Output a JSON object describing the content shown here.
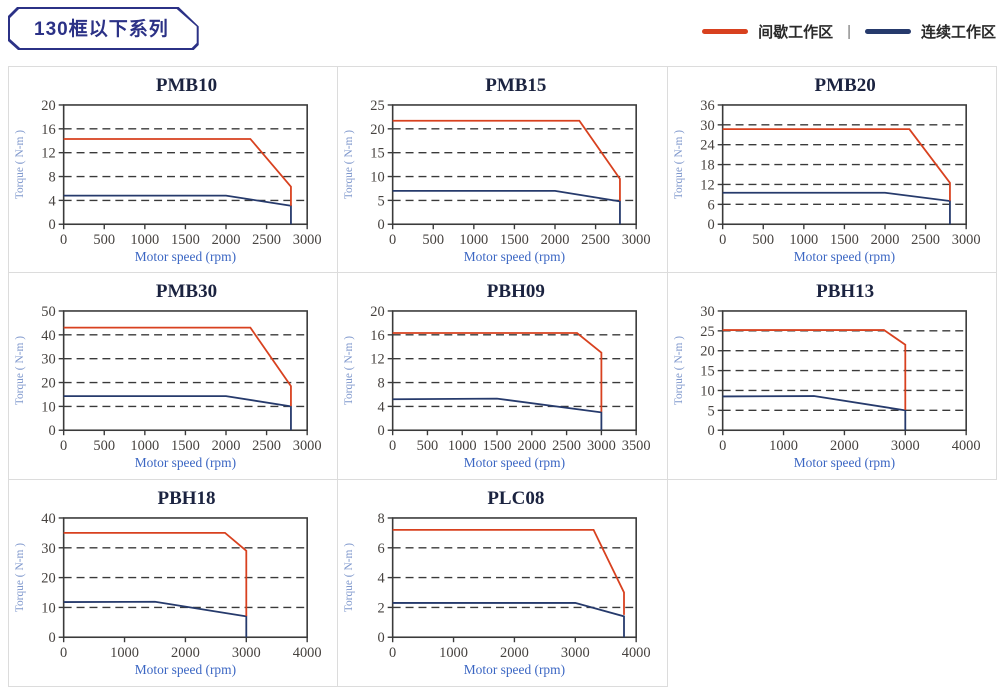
{
  "page": {
    "badge_title": "130框以下系列"
  },
  "legend": {
    "separator": "|",
    "items": [
      {
        "id": "intermittent",
        "label": "间歇工作区",
        "color": "#d8411f"
      },
      {
        "id": "continuous",
        "label": "连续工作区",
        "color": "#263a6c"
      }
    ]
  },
  "colors": {
    "intermittent_line": "#d8411f",
    "continuous_line": "#263a6c",
    "plot_border": "#3a3a3a",
    "gridline": "#3a3a3a",
    "tick_label": "#46423f",
    "xlabel_text": "#3b66c3",
    "ylabel_text": "#7e97cc",
    "chart_title": "#1b2340",
    "cell_border": "#dcdcdc",
    "badge": "#2b3186"
  },
  "axis_labels": {
    "x": "Motor speed (rpm)",
    "y": "Torque ( N-m )"
  },
  "chart_data": [
    {
      "type": "line",
      "title": "PMB10",
      "xlabel": "Motor speed (rpm)",
      "ylabel": "Torque ( N-m )",
      "xlim": [
        0,
        3000
      ],
      "ylim": [
        0,
        20
      ],
      "xticks": [
        0,
        500,
        1000,
        1500,
        2000,
        2500,
        3000
      ],
      "yticks": [
        0,
        4,
        8,
        12,
        16,
        20
      ],
      "grid": "dashed-horizontal",
      "series": [
        {
          "name": "间歇工作区",
          "role": "intermittent",
          "points": [
            [
              0,
              14.3
            ],
            [
              2300,
              14.3
            ],
            [
              2800,
              6.3
            ],
            [
              2800,
              3.1
            ]
          ]
        },
        {
          "name": "连续工作区",
          "role": "continuous",
          "points": [
            [
              0,
              4.8
            ],
            [
              2000,
              4.8
            ],
            [
              2800,
              3.1
            ],
            [
              2800,
              0
            ]
          ]
        }
      ]
    },
    {
      "type": "line",
      "title": "PMB15",
      "xlabel": "Motor speed (rpm)",
      "ylabel": "Torque ( N-m )",
      "xlim": [
        0,
        3000
      ],
      "ylim": [
        0,
        25
      ],
      "xticks": [
        0,
        500,
        1000,
        1500,
        2000,
        2500,
        3000
      ],
      "yticks": [
        0,
        5,
        10,
        15,
        20,
        25
      ],
      "grid": "dashed-horizontal",
      "series": [
        {
          "name": "间歇工作区",
          "role": "intermittent",
          "points": [
            [
              0,
              21.7
            ],
            [
              2300,
              21.7
            ],
            [
              2800,
              9.5
            ],
            [
              2800,
              4.9
            ]
          ]
        },
        {
          "name": "连续工作区",
          "role": "continuous",
          "points": [
            [
              0,
              7
            ],
            [
              2000,
              7
            ],
            [
              2800,
              4.8
            ],
            [
              2800,
              0
            ]
          ]
        }
      ]
    },
    {
      "type": "line",
      "title": "PMB20",
      "xlabel": "Motor speed (rpm)",
      "ylabel": "Torque ( N-m )",
      "xlim": [
        0,
        3000
      ],
      "ylim": [
        0,
        36
      ],
      "xticks": [
        0,
        500,
        1000,
        1500,
        2000,
        2500,
        3000
      ],
      "yticks": [
        0,
        6,
        12,
        18,
        24,
        30,
        36
      ],
      "grid": "dashed-horizontal",
      "series": [
        {
          "name": "间歇工作区",
          "role": "intermittent",
          "points": [
            [
              0,
              28.7
            ],
            [
              2300,
              28.7
            ],
            [
              2800,
              12.5
            ],
            [
              2800,
              7.1
            ]
          ]
        },
        {
          "name": "连续工作区",
          "role": "continuous",
          "points": [
            [
              0,
              9.5
            ],
            [
              2000,
              9.5
            ],
            [
              2800,
              7
            ],
            [
              2800,
              0
            ]
          ]
        }
      ]
    },
    {
      "type": "line",
      "title": "PMB30",
      "xlabel": "Motor speed (rpm)",
      "ylabel": "Torque ( N-m )",
      "xlim": [
        0,
        3000
      ],
      "ylim": [
        0,
        50
      ],
      "xticks": [
        0,
        500,
        1000,
        1500,
        2000,
        2500,
        3000
      ],
      "yticks": [
        0,
        10,
        20,
        30,
        40,
        50
      ],
      "grid": "dashed-horizontal",
      "series": [
        {
          "name": "间歇工作区",
          "role": "intermittent",
          "points": [
            [
              0,
              43
            ],
            [
              2300,
              43
            ],
            [
              2800,
              18.5
            ],
            [
              2800,
              10.1
            ]
          ]
        },
        {
          "name": "连续工作区",
          "role": "continuous",
          "points": [
            [
              0,
              14.3
            ],
            [
              2000,
              14.3
            ],
            [
              2800,
              10
            ],
            [
              2800,
              0
            ]
          ]
        }
      ]
    },
    {
      "type": "line",
      "title": "PBH09",
      "xlabel": "Motor speed (rpm)",
      "ylabel": "Torque ( N-m )",
      "xlim": [
        0,
        3500
      ],
      "ylim": [
        0,
        20
      ],
      "xticks": [
        0,
        500,
        1000,
        1500,
        2000,
        2500,
        3000,
        3500
      ],
      "yticks": [
        0,
        4,
        8,
        12,
        16,
        20
      ],
      "grid": "dashed-horizontal",
      "series": [
        {
          "name": "间歇工作区",
          "role": "intermittent",
          "points": [
            [
              0,
              16.3
            ],
            [
              2650,
              16.3
            ],
            [
              3000,
              13
            ],
            [
              3000,
              3.1
            ]
          ]
        },
        {
          "name": "连续工作区",
          "role": "continuous",
          "points": [
            [
              0,
              5.2
            ],
            [
              1500,
              5.3
            ],
            [
              3000,
              3
            ],
            [
              3000,
              0
            ]
          ]
        }
      ]
    },
    {
      "type": "line",
      "title": "PBH13",
      "xlabel": "Motor speed (rpm)",
      "ylabel": "Torque ( N-m )",
      "xlim": [
        0,
        4000
      ],
      "ylim": [
        0,
        30
      ],
      "xticks": [
        0,
        1000,
        2000,
        3000,
        4000
      ],
      "yticks": [
        0,
        5,
        10,
        15,
        20,
        25,
        30
      ],
      "grid": "dashed-horizontal",
      "series": [
        {
          "name": "间歇工作区",
          "role": "intermittent",
          "points": [
            [
              0,
              25.2
            ],
            [
              2650,
              25.2
            ],
            [
              3000,
              21.5
            ],
            [
              3000,
              5.1
            ]
          ]
        },
        {
          "name": "连续工作区",
          "role": "continuous",
          "points": [
            [
              0,
              8.5
            ],
            [
              1500,
              8.6
            ],
            [
              3000,
              5
            ],
            [
              3000,
              0
            ]
          ]
        }
      ]
    },
    {
      "type": "line",
      "title": "PBH18",
      "xlabel": "Motor speed (rpm)",
      "ylabel": "Torque ( N-m )",
      "xlim": [
        0,
        4000
      ],
      "ylim": [
        0,
        40
      ],
      "xticks": [
        0,
        1000,
        2000,
        3000,
        4000
      ],
      "yticks": [
        0,
        10,
        20,
        30,
        40
      ],
      "grid": "dashed-horizontal",
      "series": [
        {
          "name": "间歇工作区",
          "role": "intermittent",
          "points": [
            [
              0,
              35
            ],
            [
              2650,
              35
            ],
            [
              3000,
              29
            ],
            [
              3000,
              7.1
            ]
          ]
        },
        {
          "name": "连续工作区",
          "role": "continuous",
          "points": [
            [
              0,
              11.8
            ],
            [
              1500,
              11.9
            ],
            [
              3000,
              7
            ],
            [
              3000,
              0
            ]
          ]
        }
      ]
    },
    {
      "type": "line",
      "title": "PLC08",
      "xlabel": "Motor speed (rpm)",
      "ylabel": "Torque ( N-m )",
      "xlim": [
        0,
        4000
      ],
      "ylim": [
        0,
        8
      ],
      "xticks": [
        0,
        1000,
        2000,
        3000,
        4000
      ],
      "yticks": [
        0,
        2,
        4,
        6,
        8
      ],
      "grid": "dashed-horizontal",
      "series": [
        {
          "name": "间歇工作区",
          "role": "intermittent",
          "points": [
            [
              0,
              7.2
            ],
            [
              3300,
              7.2
            ],
            [
              3800,
              3
            ],
            [
              3800,
              1.5
            ]
          ]
        },
        {
          "name": "连续工作区",
          "role": "continuous",
          "points": [
            [
              0,
              2.3
            ],
            [
              3000,
              2.3
            ],
            [
              3800,
              1.4
            ],
            [
              3800,
              0
            ]
          ]
        }
      ]
    }
  ]
}
